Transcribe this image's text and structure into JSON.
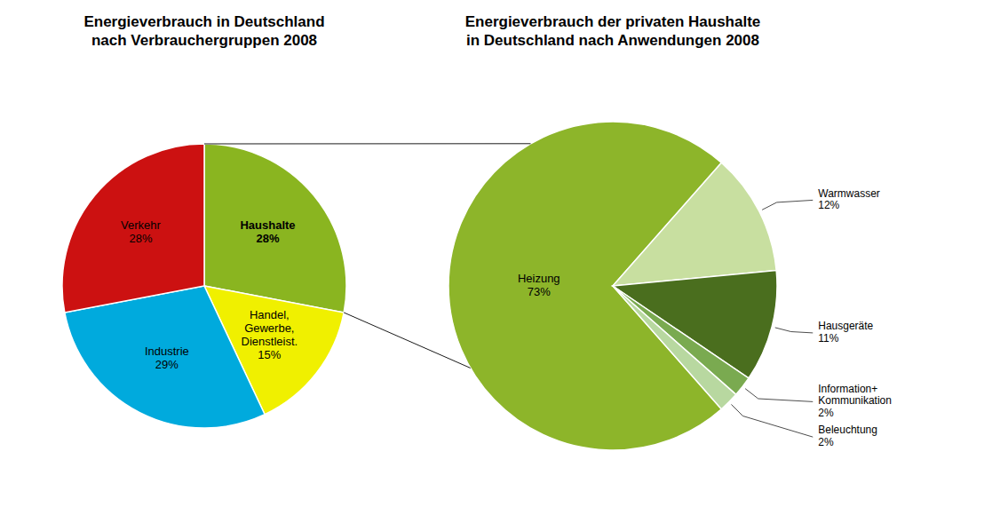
{
  "chart_data": [
    {
      "type": "pie",
      "title": "Energieverbrauch in Deutschland\nnach Verbrauchergruppen 2008",
      "categories": [
        "Haushalte",
        "Handel,\nGewerbe,\nDienstleist.",
        "Industrie",
        "Verkehr"
      ],
      "values": [
        28,
        15,
        29,
        28
      ],
      "value_labels": [
        "28%",
        "15%",
        "29%",
        "28%"
      ],
      "colors": [
        "#8ab520",
        "#f0f000",
        "#00aadd",
        "#cc1111"
      ],
      "data_labels": true
    },
    {
      "type": "pie",
      "title": "Energieverbrauch der privaten Haushalte\nin Deutschland nach Anwendungen 2008",
      "categories": [
        "Heizung",
        "Warmwasser",
        "Hausgeräte",
        "Information+\nKommunikation",
        "Beleuchtung"
      ],
      "values": [
        73,
        12,
        11,
        2,
        2
      ],
      "value_labels": [
        "73%",
        "12%",
        "11%",
        "2%",
        "2%"
      ],
      "colors": [
        "#8db52a",
        "#c8dfa0",
        "#4a6e1e",
        "#7aaa50",
        "#b8d8a0"
      ],
      "data_labels": true
    }
  ]
}
